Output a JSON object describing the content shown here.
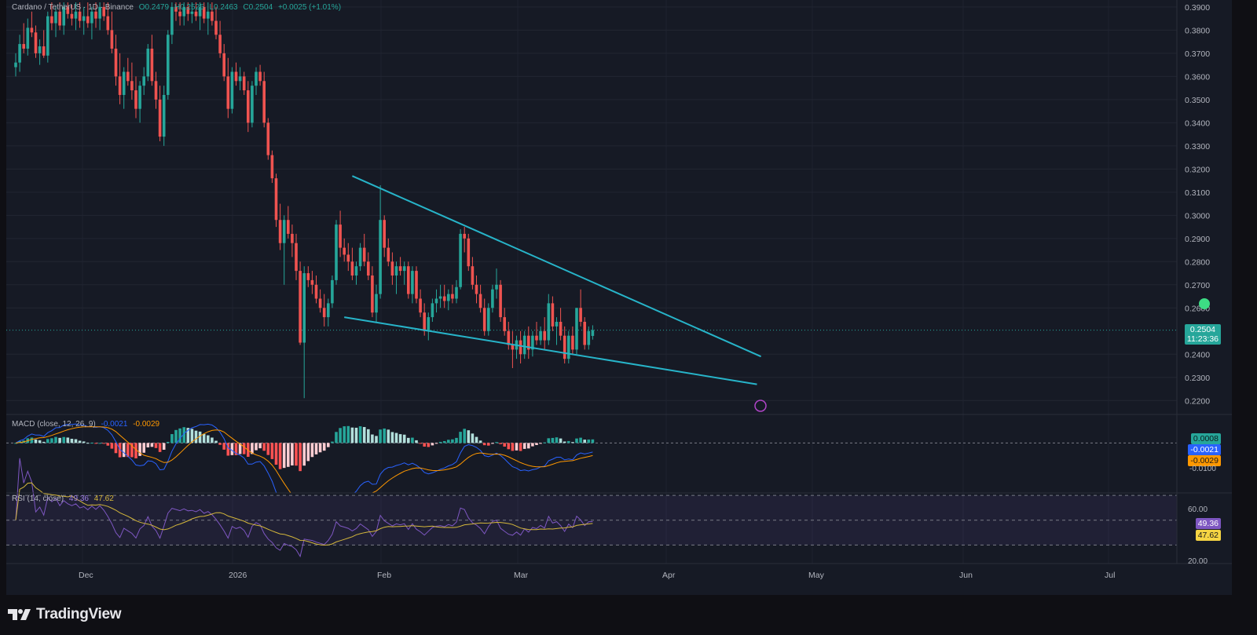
{
  "header": {
    "symbol": "Cardano / TetherUS · 1D · Binance",
    "open": "O0.2479",
    "high": "H0.2525",
    "low": "L0.2463",
    "close": "C0.2504",
    "change": "+0.0025 (+1.01%)"
  },
  "price_badge": {
    "value": "0.2504",
    "countdown": "11:23:36"
  },
  "macd_legend": {
    "label": "MACD (close, 12, 26, 9)",
    "macd": "-0.0021",
    "signal": "-0.0029"
  },
  "macd_badges": {
    "histogram": "0.0008",
    "macd": "-0.0021",
    "signal": "-0.0029"
  },
  "macd_scale": "-0.0100",
  "rsi_legend": {
    "label": "RSI (14, close)",
    "rsi": "49.36",
    "ma": "47.62"
  },
  "rsi_badges": {
    "rsi": "49.36",
    "ma": "47.62"
  },
  "rsi_scale": [
    "60.00",
    "20.00"
  ],
  "brand": "TradingView",
  "colors": {
    "background": "#161a25",
    "up": "#26a69a",
    "down": "#ef5350",
    "trendline": "#27b4c9",
    "macd_line": "#2962ff",
    "signal_line": "#ff9800",
    "rsi_line": "#7e57c2",
    "rsi_ma": "#d4b73b"
  },
  "chart_data": {
    "type": "candlestick",
    "title": "Cardano / TetherUS · 1D · Binance",
    "x_tick_labels": [
      "Dec",
      "2026",
      "Feb",
      "Mar",
      "Apr",
      "May",
      "Jun",
      "Jul"
    ],
    "y_tick_labels": [
      "0.3900",
      "0.3800",
      "0.3700",
      "0.3600",
      "0.3500",
      "0.3400",
      "0.3300",
      "0.3200",
      "0.3100",
      "0.3000",
      "0.2900",
      "0.2800",
      "0.2700",
      "0.2600",
      "0.2400",
      "0.2300",
      "0.2200"
    ],
    "ylim": [
      0.215,
      0.392
    ],
    "candles": [
      {
        "o": 0.364,
        "h": 0.37,
        "l": 0.36,
        "c": 0.366
      },
      {
        "o": 0.366,
        "h": 0.378,
        "l": 0.362,
        "c": 0.374
      },
      {
        "o": 0.374,
        "h": 0.383,
        "l": 0.37,
        "c": 0.372
      },
      {
        "o": 0.372,
        "h": 0.385,
        "l": 0.369,
        "c": 0.381
      },
      {
        "o": 0.381,
        "h": 0.388,
        "l": 0.377,
        "c": 0.379
      },
      {
        "o": 0.379,
        "h": 0.382,
        "l": 0.368,
        "c": 0.37
      },
      {
        "o": 0.37,
        "h": 0.376,
        "l": 0.365,
        "c": 0.373
      },
      {
        "o": 0.373,
        "h": 0.38,
        "l": 0.368,
        "c": 0.369
      },
      {
        "o": 0.369,
        "h": 0.388,
        "l": 0.366,
        "c": 0.386
      },
      {
        "o": 0.386,
        "h": 0.392,
        "l": 0.38,
        "c": 0.383
      },
      {
        "o": 0.383,
        "h": 0.39,
        "l": 0.377,
        "c": 0.388
      },
      {
        "o": 0.388,
        "h": 0.392,
        "l": 0.38,
        "c": 0.382
      },
      {
        "o": 0.382,
        "h": 0.392,
        "l": 0.378,
        "c": 0.39
      },
      {
        "o": 0.39,
        "h": 0.392,
        "l": 0.385,
        "c": 0.387
      },
      {
        "o": 0.387,
        "h": 0.391,
        "l": 0.382,
        "c": 0.385
      },
      {
        "o": 0.385,
        "h": 0.392,
        "l": 0.38,
        "c": 0.388
      },
      {
        "o": 0.388,
        "h": 0.392,
        "l": 0.381,
        "c": 0.384
      },
      {
        "o": 0.384,
        "h": 0.39,
        "l": 0.378,
        "c": 0.386
      },
      {
        "o": 0.386,
        "h": 0.392,
        "l": 0.381,
        "c": 0.383
      },
      {
        "o": 0.383,
        "h": 0.39,
        "l": 0.376,
        "c": 0.388
      },
      {
        "o": 0.388,
        "h": 0.392,
        "l": 0.381,
        "c": 0.385
      },
      {
        "o": 0.385,
        "h": 0.392,
        "l": 0.38,
        "c": 0.39
      },
      {
        "o": 0.39,
        "h": 0.392,
        "l": 0.384,
        "c": 0.386
      },
      {
        "o": 0.386,
        "h": 0.392,
        "l": 0.378,
        "c": 0.38
      },
      {
        "o": 0.38,
        "h": 0.388,
        "l": 0.37,
        "c": 0.372
      },
      {
        "o": 0.372,
        "h": 0.378,
        "l": 0.356,
        "c": 0.36
      },
      {
        "o": 0.36,
        "h": 0.37,
        "l": 0.348,
        "c": 0.352
      },
      {
        "o": 0.352,
        "h": 0.364,
        "l": 0.346,
        "c": 0.362
      },
      {
        "o": 0.362,
        "h": 0.368,
        "l": 0.356,
        "c": 0.358
      },
      {
        "o": 0.358,
        "h": 0.366,
        "l": 0.35,
        "c": 0.354
      },
      {
        "o": 0.354,
        "h": 0.36,
        "l": 0.342,
        "c": 0.346
      },
      {
        "o": 0.346,
        "h": 0.358,
        "l": 0.34,
        "c": 0.356
      },
      {
        "o": 0.356,
        "h": 0.364,
        "l": 0.352,
        "c": 0.36
      },
      {
        "o": 0.36,
        "h": 0.374,
        "l": 0.358,
        "c": 0.372
      },
      {
        "o": 0.372,
        "h": 0.378,
        "l": 0.356,
        "c": 0.358
      },
      {
        "o": 0.358,
        "h": 0.362,
        "l": 0.346,
        "c": 0.35
      },
      {
        "o": 0.35,
        "h": 0.356,
        "l": 0.332,
        "c": 0.334
      },
      {
        "o": 0.334,
        "h": 0.356,
        "l": 0.33,
        "c": 0.352
      },
      {
        "o": 0.352,
        "h": 0.38,
        "l": 0.35,
        "c": 0.378
      },
      {
        "o": 0.378,
        "h": 0.392,
        "l": 0.374,
        "c": 0.39
      },
      {
        "o": 0.39,
        "h": 0.392,
        "l": 0.384,
        "c": 0.388
      },
      {
        "o": 0.388,
        "h": 0.392,
        "l": 0.382,
        "c": 0.386
      },
      {
        "o": 0.386,
        "h": 0.392,
        "l": 0.382,
        "c": 0.39
      },
      {
        "o": 0.39,
        "h": 0.392,
        "l": 0.384,
        "c": 0.387
      },
      {
        "o": 0.387,
        "h": 0.392,
        "l": 0.383,
        "c": 0.388
      },
      {
        "o": 0.388,
        "h": 0.392,
        "l": 0.384,
        "c": 0.386
      },
      {
        "o": 0.386,
        "h": 0.392,
        "l": 0.38,
        "c": 0.39
      },
      {
        "o": 0.39,
        "h": 0.392,
        "l": 0.383,
        "c": 0.385
      },
      {
        "o": 0.385,
        "h": 0.392,
        "l": 0.378,
        "c": 0.388
      },
      {
        "o": 0.388,
        "h": 0.392,
        "l": 0.382,
        "c": 0.384
      },
      {
        "o": 0.384,
        "h": 0.39,
        "l": 0.376,
        "c": 0.378
      },
      {
        "o": 0.378,
        "h": 0.384,
        "l": 0.368,
        "c": 0.37
      },
      {
        "o": 0.37,
        "h": 0.374,
        "l": 0.358,
        "c": 0.36
      },
      {
        "o": 0.36,
        "h": 0.368,
        "l": 0.342,
        "c": 0.346
      },
      {
        "o": 0.346,
        "h": 0.364,
        "l": 0.344,
        "c": 0.362
      },
      {
        "o": 0.362,
        "h": 0.366,
        "l": 0.356,
        "c": 0.358
      },
      {
        "o": 0.358,
        "h": 0.364,
        "l": 0.354,
        "c": 0.36
      },
      {
        "o": 0.36,
        "h": 0.362,
        "l": 0.352,
        "c": 0.354
      },
      {
        "o": 0.354,
        "h": 0.358,
        "l": 0.336,
        "c": 0.34
      },
      {
        "o": 0.34,
        "h": 0.358,
        "l": 0.338,
        "c": 0.356
      },
      {
        "o": 0.356,
        "h": 0.364,
        "l": 0.352,
        "c": 0.362
      },
      {
        "o": 0.362,
        "h": 0.365,
        "l": 0.356,
        "c": 0.358
      },
      {
        "o": 0.358,
        "h": 0.362,
        "l": 0.338,
        "c": 0.34
      },
      {
        "o": 0.34,
        "h": 0.342,
        "l": 0.324,
        "c": 0.326
      },
      {
        "o": 0.326,
        "h": 0.328,
        "l": 0.314,
        "c": 0.316
      },
      {
        "o": 0.316,
        "h": 0.318,
        "l": 0.295,
        "c": 0.298
      },
      {
        "o": 0.298,
        "h": 0.305,
        "l": 0.285,
        "c": 0.288
      },
      {
        "o": 0.288,
        "h": 0.3,
        "l": 0.27,
        "c": 0.298
      },
      {
        "o": 0.298,
        "h": 0.304,
        "l": 0.29,
        "c": 0.292
      },
      {
        "o": 0.292,
        "h": 0.296,
        "l": 0.282,
        "c": 0.288
      },
      {
        "o": 0.288,
        "h": 0.292,
        "l": 0.272,
        "c": 0.276
      },
      {
        "o": 0.276,
        "h": 0.28,
        "l": 0.244,
        "c": 0.245
      },
      {
        "o": 0.245,
        "h": 0.278,
        "l": 0.221,
        "c": 0.275
      },
      {
        "o": 0.275,
        "h": 0.278,
        "l": 0.269,
        "c": 0.272
      },
      {
        "o": 0.272,
        "h": 0.276,
        "l": 0.266,
        "c": 0.27
      },
      {
        "o": 0.27,
        "h": 0.274,
        "l": 0.262,
        "c": 0.264
      },
      {
        "o": 0.264,
        "h": 0.268,
        "l": 0.258,
        "c": 0.26
      },
      {
        "o": 0.26,
        "h": 0.266,
        "l": 0.252,
        "c": 0.256
      },
      {
        "o": 0.256,
        "h": 0.264,
        "l": 0.252,
        "c": 0.262
      },
      {
        "o": 0.262,
        "h": 0.274,
        "l": 0.26,
        "c": 0.272
      },
      {
        "o": 0.272,
        "h": 0.298,
        "l": 0.27,
        "c": 0.296
      },
      {
        "o": 0.296,
        "h": 0.302,
        "l": 0.282,
        "c": 0.286
      },
      {
        "o": 0.286,
        "h": 0.29,
        "l": 0.28,
        "c": 0.283
      },
      {
        "o": 0.283,
        "h": 0.288,
        "l": 0.276,
        "c": 0.28
      },
      {
        "o": 0.28,
        "h": 0.286,
        "l": 0.272,
        "c": 0.274
      },
      {
        "o": 0.274,
        "h": 0.28,
        "l": 0.27,
        "c": 0.278
      },
      {
        "o": 0.278,
        "h": 0.288,
        "l": 0.276,
        "c": 0.286
      },
      {
        "o": 0.286,
        "h": 0.292,
        "l": 0.278,
        "c": 0.28
      },
      {
        "o": 0.28,
        "h": 0.284,
        "l": 0.272,
        "c": 0.274
      },
      {
        "o": 0.274,
        "h": 0.278,
        "l": 0.256,
        "c": 0.258
      },
      {
        "o": 0.258,
        "h": 0.27,
        "l": 0.254,
        "c": 0.266
      },
      {
        "o": 0.266,
        "h": 0.313,
        "l": 0.264,
        "c": 0.298
      },
      {
        "o": 0.298,
        "h": 0.3,
        "l": 0.282,
        "c": 0.286
      },
      {
        "o": 0.286,
        "h": 0.29,
        "l": 0.278,
        "c": 0.28
      },
      {
        "o": 0.28,
        "h": 0.284,
        "l": 0.27,
        "c": 0.274
      },
      {
        "o": 0.274,
        "h": 0.28,
        "l": 0.266,
        "c": 0.278
      },
      {
        "o": 0.278,
        "h": 0.282,
        "l": 0.274,
        "c": 0.276
      },
      {
        "o": 0.276,
        "h": 0.28,
        "l": 0.27,
        "c": 0.278
      },
      {
        "o": 0.278,
        "h": 0.28,
        "l": 0.264,
        "c": 0.266
      },
      {
        "o": 0.266,
        "h": 0.278,
        "l": 0.262,
        "c": 0.276
      },
      {
        "o": 0.276,
        "h": 0.278,
        "l": 0.262,
        "c": 0.264
      },
      {
        "o": 0.264,
        "h": 0.268,
        "l": 0.256,
        "c": 0.258
      },
      {
        "o": 0.258,
        "h": 0.262,
        "l": 0.248,
        "c": 0.25
      },
      {
        "o": 0.25,
        "h": 0.258,
        "l": 0.246,
        "c": 0.256
      },
      {
        "o": 0.256,
        "h": 0.264,
        "l": 0.254,
        "c": 0.262
      },
      {
        "o": 0.262,
        "h": 0.268,
        "l": 0.258,
        "c": 0.264
      },
      {
        "o": 0.264,
        "h": 0.27,
        "l": 0.26,
        "c": 0.265
      },
      {
        "o": 0.265,
        "h": 0.27,
        "l": 0.26,
        "c": 0.263
      },
      {
        "o": 0.263,
        "h": 0.268,
        "l": 0.259,
        "c": 0.266
      },
      {
        "o": 0.266,
        "h": 0.27,
        "l": 0.262,
        "c": 0.264
      },
      {
        "o": 0.264,
        "h": 0.272,
        "l": 0.262,
        "c": 0.269
      },
      {
        "o": 0.269,
        "h": 0.294,
        "l": 0.268,
        "c": 0.292
      },
      {
        "o": 0.292,
        "h": 0.295,
        "l": 0.284,
        "c": 0.29
      },
      {
        "o": 0.29,
        "h": 0.292,
        "l": 0.276,
        "c": 0.278
      },
      {
        "o": 0.278,
        "h": 0.282,
        "l": 0.268,
        "c": 0.27
      },
      {
        "o": 0.27,
        "h": 0.274,
        "l": 0.262,
        "c": 0.266
      },
      {
        "o": 0.266,
        "h": 0.27,
        "l": 0.258,
        "c": 0.26
      },
      {
        "o": 0.26,
        "h": 0.264,
        "l": 0.248,
        "c": 0.25
      },
      {
        "o": 0.25,
        "h": 0.262,
        "l": 0.248,
        "c": 0.26
      },
      {
        "o": 0.26,
        "h": 0.27,
        "l": 0.258,
        "c": 0.268
      },
      {
        "o": 0.268,
        "h": 0.277,
        "l": 0.264,
        "c": 0.27
      },
      {
        "o": 0.27,
        "h": 0.272,
        "l": 0.254,
        "c": 0.256
      },
      {
        "o": 0.256,
        "h": 0.26,
        "l": 0.248,
        "c": 0.25
      },
      {
        "o": 0.25,
        "h": 0.254,
        "l": 0.242,
        "c": 0.244
      },
      {
        "o": 0.244,
        "h": 0.25,
        "l": 0.234,
        "c": 0.242
      },
      {
        "o": 0.242,
        "h": 0.248,
        "l": 0.238,
        "c": 0.246
      },
      {
        "o": 0.246,
        "h": 0.25,
        "l": 0.236,
        "c": 0.24
      },
      {
        "o": 0.24,
        "h": 0.25,
        "l": 0.238,
        "c": 0.248
      },
      {
        "o": 0.248,
        "h": 0.252,
        "l": 0.238,
        "c": 0.242
      },
      {
        "o": 0.242,
        "h": 0.25,
        "l": 0.239,
        "c": 0.248
      },
      {
        "o": 0.248,
        "h": 0.254,
        "l": 0.244,
        "c": 0.246
      },
      {
        "o": 0.246,
        "h": 0.252,
        "l": 0.244,
        "c": 0.25
      },
      {
        "o": 0.25,
        "h": 0.256,
        "l": 0.242,
        "c": 0.246
      },
      {
        "o": 0.246,
        "h": 0.266,
        "l": 0.244,
        "c": 0.262
      },
      {
        "o": 0.262,
        "h": 0.265,
        "l": 0.25,
        "c": 0.252
      },
      {
        "o": 0.252,
        "h": 0.256,
        "l": 0.244,
        "c": 0.254
      },
      {
        "o": 0.254,
        "h": 0.26,
        "l": 0.246,
        "c": 0.248
      },
      {
        "o": 0.248,
        "h": 0.252,
        "l": 0.236,
        "c": 0.238
      },
      {
        "o": 0.238,
        "h": 0.25,
        "l": 0.236,
        "c": 0.248
      },
      {
        "o": 0.248,
        "h": 0.252,
        "l": 0.24,
        "c": 0.242
      },
      {
        "o": 0.242,
        "h": 0.26,
        "l": 0.24,
        "c": 0.26
      },
      {
        "o": 0.26,
        "h": 0.268,
        "l": 0.252,
        "c": 0.254
      },
      {
        "o": 0.254,
        "h": 0.256,
        "l": 0.242,
        "c": 0.244
      },
      {
        "o": 0.244,
        "h": 0.252,
        "l": 0.242,
        "c": 0.25
      },
      {
        "o": 0.2479,
        "h": 0.2525,
        "l": 0.2463,
        "c": 0.2504
      }
    ],
    "trendlines": [
      {
        "name": "upper",
        "from": {
          "bar": 84,
          "price": 0.317
        },
        "to": {
          "bar": 186,
          "price": 0.239
        }
      },
      {
        "name": "lower",
        "from": {
          "bar": 82,
          "price": 0.256
        },
        "to": {
          "bar": 185,
          "price": 0.227
        }
      }
    ],
    "macd": {
      "label": "MACD (close, 12, 26, 9)",
      "last": {
        "histogram": 0.0008,
        "macd": -0.0021,
        "signal": -0.0029
      },
      "ylim": [
        -0.014,
        0.008
      ]
    },
    "rsi": {
      "label": "RSI (14, close)",
      "last": {
        "rsi": 49.36,
        "ma": 47.62
      },
      "ylim": [
        15,
        72
      ]
    }
  }
}
